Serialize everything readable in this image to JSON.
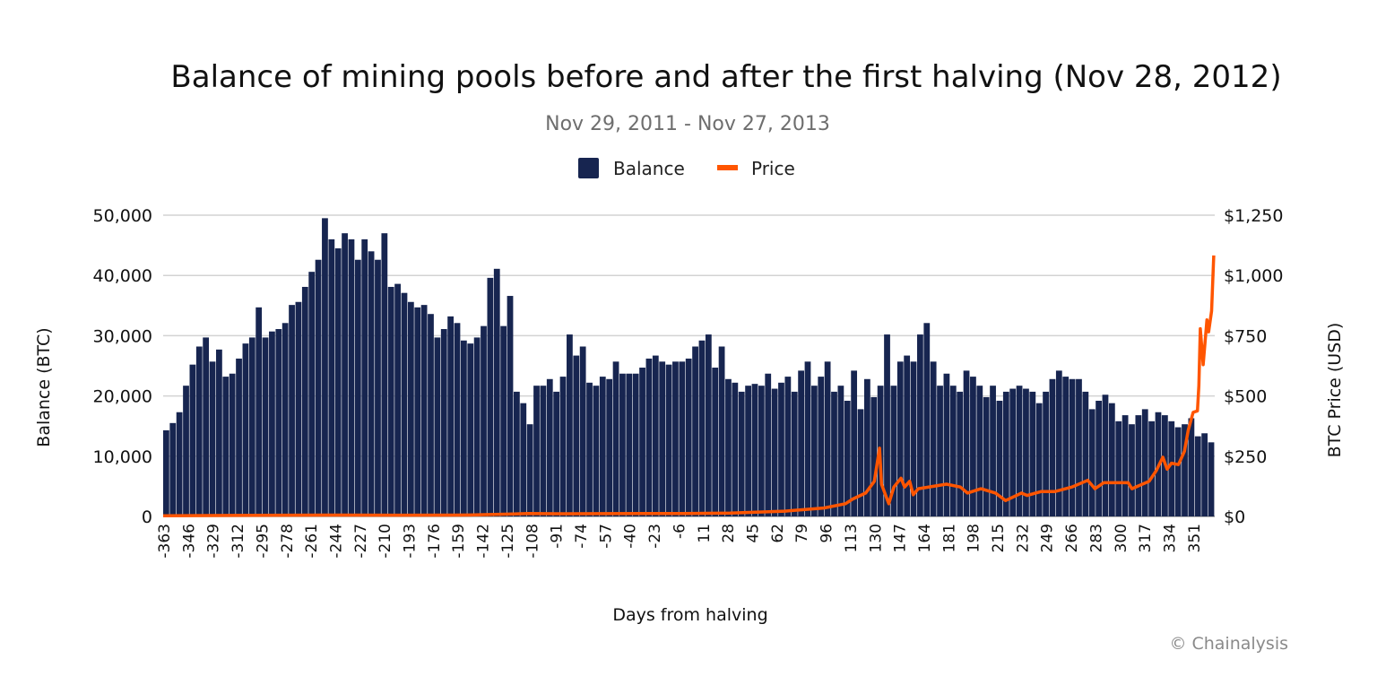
{
  "chart_data": {
    "type": "bar+line",
    "title": "Balance of mining pools before and after the first halving (Nov 28, 2012)",
    "subtitle": "Nov 29, 2011 - Nov 27, 2013",
    "xlabel": "Days from halving",
    "ylabel_left": "Balance (BTC)",
    "ylabel_right": "BTC Price (USD)",
    "credit": "© Chainalysis",
    "legend": {
      "position": "top",
      "items": [
        {
          "label": "Balance",
          "color": "#172550"
        },
        {
          "label": "Price",
          "color": "#ff5500"
        }
      ]
    },
    "grid": true,
    "xlim": [
      -363,
      365
    ],
    "ylim_left": [
      0,
      50000
    ],
    "ylim_right": [
      0,
      1250
    ],
    "y_ticks_left": [
      "0",
      "10,000",
      "20,000",
      "30,000",
      "40,000",
      "50,000"
    ],
    "y_ticks_right": [
      "$0",
      "$250",
      "$500",
      "$750",
      "$1,000",
      "$1,250"
    ],
    "x_ticks": [
      "-363",
      "-346",
      "-329",
      "-312",
      "-295",
      "-278",
      "-261",
      "-244",
      "-227",
      "-210",
      "-193",
      "-176",
      "-159",
      "-142",
      "-125",
      "-108",
      "-91",
      "-74",
      "-57",
      "-40",
      "-23",
      "-6",
      "11",
      "28",
      "45",
      "62",
      "79",
      "96",
      "113",
      "130",
      "147",
      "164",
      "181",
      "198",
      "215",
      "232",
      "249",
      "266",
      "283",
      "300",
      "317",
      "334",
      "351"
    ],
    "series": [
      {
        "name": "Balance",
        "type": "bar",
        "axis": "left",
        "color": "#172550",
        "values": [
          14300,
          15500,
          17300,
          21700,
          25200,
          28200,
          29700,
          25700,
          27700,
          23200,
          23700,
          26200,
          28700,
          29700,
          34700,
          29700,
          30700,
          31100,
          32100,
          35100,
          35600,
          38100,
          40600,
          42600,
          49500,
          46000,
          44500,
          47000,
          46000,
          42600,
          46000,
          44000,
          42600,
          47000,
          38100,
          38600,
          37100,
          35600,
          34700,
          35100,
          33600,
          29700,
          31100,
          33200,
          32100,
          29200,
          28700,
          29700,
          31600,
          39600,
          41100,
          31600,
          36600,
          20700,
          18800,
          15300,
          21700,
          21700,
          22800,
          20700,
          23200,
          30200,
          26700,
          28200,
          22200,
          21700,
          23200,
          22800,
          25700,
          23700,
          23700,
          23700,
          24700,
          26200,
          26700,
          25700,
          25200,
          25700,
          25700,
          26200,
          28200,
          29200,
          30200,
          24700,
          28200,
          22800,
          22200,
          20700,
          21700,
          22000,
          21700,
          23700,
          21200,
          22200,
          23200,
          20700,
          24200,
          25700,
          21700,
          23200,
          25700,
          20700,
          21700,
          19200,
          24200,
          17800,
          22800,
          19800,
          21700,
          30200,
          21700,
          25700,
          26700,
          25700,
          30200,
          32100,
          25700,
          21700,
          23700,
          21700,
          20700,
          24200,
          23200,
          21700,
          19800,
          21700,
          19200,
          20700,
          21200,
          21700,
          21200,
          20700,
          18800,
          20700,
          22800,
          24200,
          23200,
          22800,
          22800,
          20700,
          17800,
          19200,
          20200,
          18800,
          15800,
          16800,
          15300,
          16800,
          17800,
          15800,
          17300,
          16800,
          15800,
          14800,
          15300,
          16300,
          13300,
          13800,
          12300
        ]
      },
      {
        "name": "Price",
        "type": "line",
        "axis": "right",
        "color": "#ff5500",
        "points": [
          [
            -363,
            3
          ],
          [
            -300,
            5
          ],
          [
            -250,
            5.5
          ],
          [
            -200,
            5.2
          ],
          [
            -150,
            6
          ],
          [
            -120,
            10
          ],
          [
            -110,
            12
          ],
          [
            -90,
            11
          ],
          [
            -60,
            11.5
          ],
          [
            -30,
            12
          ],
          [
            -4,
            12
          ],
          [
            30,
            14
          ],
          [
            68,
            22
          ],
          [
            95,
            35
          ],
          [
            110,
            53
          ],
          [
            115,
            72
          ],
          [
            124,
            97
          ],
          [
            130,
            146
          ],
          [
            133.6,
            283
          ],
          [
            135,
            134
          ],
          [
            140,
            53
          ],
          [
            143.6,
            122
          ],
          [
            148.5,
            159
          ],
          [
            151,
            122
          ],
          [
            154.5,
            146
          ],
          [
            157,
            90
          ],
          [
            160.5,
            115
          ],
          [
            180,
            134
          ],
          [
            189.6,
            122
          ],
          [
            194.6,
            97
          ],
          [
            204,
            115
          ],
          [
            214,
            97
          ],
          [
            221,
            66
          ],
          [
            232,
            97
          ],
          [
            236,
            87
          ],
          [
            245.5,
            103
          ],
          [
            255,
            103
          ],
          [
            267,
            122
          ],
          [
            278,
            150
          ],
          [
            283,
            115
          ],
          [
            289,
            140
          ],
          [
            306,
            140
          ],
          [
            308.6,
            115
          ],
          [
            320.5,
            146
          ],
          [
            325.5,
            190
          ],
          [
            330,
            246
          ],
          [
            333,
            196
          ],
          [
            336,
            221
          ],
          [
            340.8,
            215
          ],
          [
            345,
            270
          ],
          [
            347.6,
            357
          ],
          [
            351,
            432
          ],
          [
            354,
            438
          ],
          [
            355,
            543
          ],
          [
            356,
            779
          ],
          [
            358,
            630
          ],
          [
            360.6,
            816
          ],
          [
            361.8,
            766
          ],
          [
            363.8,
            853
          ],
          [
            365.3,
            1083
          ]
        ]
      }
    ]
  }
}
